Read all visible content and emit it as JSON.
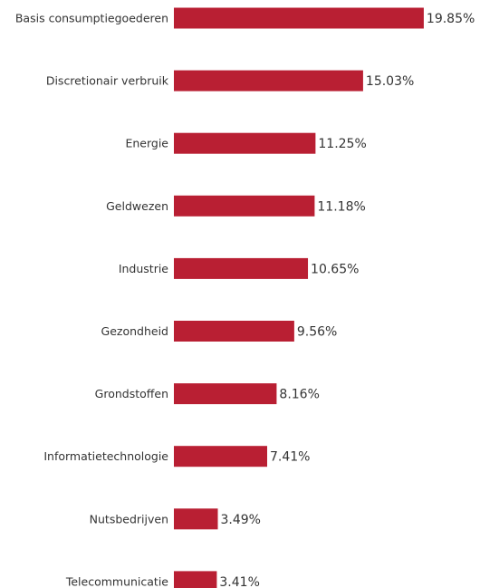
{
  "chart_data": {
    "type": "bar",
    "orientation": "horizontal",
    "categories": [
      "Basis consumptiegoederen",
      "Discretionair verbruik",
      "Energie",
      "Geldwezen",
      "Industrie",
      "Gezondheid",
      "Grondstoffen",
      "Informatietechnologie",
      "Nutsbedrijven",
      "Telecommunicatie"
    ],
    "values": [
      19.85,
      15.03,
      11.25,
      11.18,
      10.65,
      9.56,
      8.16,
      7.41,
      3.49,
      3.41
    ],
    "value_labels": [
      "19.85%",
      "15.03%",
      "11.25%",
      "11.18%",
      "10.65%",
      "9.56%",
      "8.16%",
      "7.41%",
      "3.49%",
      "3.41%"
    ],
    "title": "",
    "xlabel": "",
    "ylabel": "",
    "grid": false,
    "legend": "none",
    "bar_color": "#b91f33"
  }
}
